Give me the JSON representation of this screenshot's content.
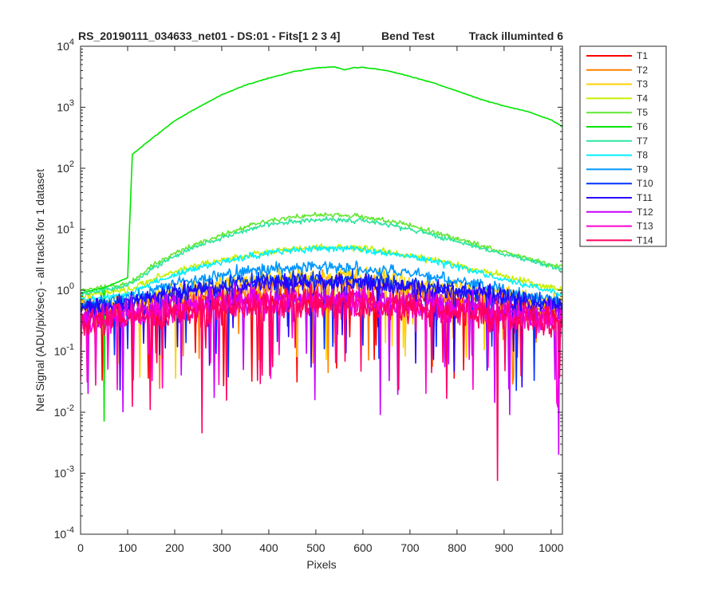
{
  "chart_data": {
    "type": "line",
    "title_parts": {
      "run": "RS_20190111_034633_net01 - DS:01 - Fits[1  2  3  4]",
      "test": "Bend Test",
      "track": "Track illuminted 6"
    },
    "xlabel": "Pixels",
    "ylabel": "Net Signal (ADU/pix/sec) - all tracks for 1 dataset",
    "xlim": [
      0,
      1024
    ],
    "ylim": [
      0.0001,
      10000
    ],
    "yscale": "log",
    "grid": false,
    "legend_position": "outside-right",
    "x_ticks": [
      "0",
      "100",
      "200",
      "300",
      "400",
      "500",
      "600",
      "700",
      "800",
      "900",
      "1000"
    ],
    "y_ticks": [
      {
        "base": "10",
        "exp": "-4"
      },
      {
        "base": "10",
        "exp": "-3"
      },
      {
        "base": "10",
        "exp": "-2"
      },
      {
        "base": "10",
        "exp": "-1"
      },
      {
        "base": "10",
        "exp": "0"
      },
      {
        "base": "10",
        "exp": "1"
      },
      {
        "base": "10",
        "exp": "2"
      },
      {
        "base": "10",
        "exp": "3"
      },
      {
        "base": "10",
        "exp": "4"
      }
    ],
    "x": [
      0,
      50,
      100,
      110,
      150,
      200,
      250,
      300,
      350,
      400,
      450,
      500,
      540,
      560,
      580,
      600,
      650,
      700,
      750,
      800,
      850,
      900,
      950,
      1000,
      1024
    ],
    "series": [
      {
        "name": "T1",
        "color": "#ff0000",
        "noise": 2.0,
        "values": [
          0.4,
          0.4,
          0.45,
          0.45,
          0.5,
          0.55,
          0.6,
          0.65,
          0.7,
          0.72,
          0.75,
          0.75,
          0.75,
          0.75,
          0.74,
          0.72,
          0.7,
          0.68,
          0.65,
          0.6,
          0.55,
          0.5,
          0.45,
          0.42,
          0.4
        ]
      },
      {
        "name": "T2",
        "color": "#ff8000",
        "noise": 1.8,
        "values": [
          0.5,
          0.5,
          0.55,
          0.55,
          0.65,
          0.75,
          0.85,
          0.95,
          1.05,
          1.15,
          1.2,
          1.25,
          1.25,
          1.25,
          1.22,
          1.2,
          1.1,
          1.0,
          0.9,
          0.8,
          0.7,
          0.62,
          0.55,
          0.5,
          0.48
        ]
      },
      {
        "name": "T3",
        "color": "#ffd200",
        "noise": 1.6,
        "values": [
          0.6,
          0.6,
          0.65,
          0.65,
          0.8,
          0.95,
          1.1,
          1.25,
          1.4,
          1.55,
          1.65,
          1.7,
          1.7,
          1.7,
          1.68,
          1.65,
          1.5,
          1.35,
          1.2,
          1.05,
          0.95,
          0.85,
          0.75,
          0.68,
          0.65
        ]
      },
      {
        "name": "T4",
        "color": "#c8f000",
        "noise": 1.2,
        "values": [
          0.8,
          0.9,
          1.0,
          1.05,
          1.5,
          2.0,
          2.6,
          3.1,
          3.7,
          4.2,
          4.7,
          5.0,
          5.0,
          5.0,
          4.9,
          4.8,
          4.3,
          3.7,
          3.1,
          2.6,
          2.1,
          1.7,
          1.35,
          1.1,
          1.0
        ]
      },
      {
        "name": "T5",
        "color": "#64e632",
        "noise": 1.15,
        "values": [
          1.0,
          1.1,
          1.3,
          1.4,
          2.5,
          4.0,
          6.0,
          8.0,
          11.0,
          14.0,
          16.0,
          17.0,
          17.0,
          16.8,
          16.5,
          16.0,
          14.0,
          11.5,
          9.0,
          7.0,
          5.5,
          4.2,
          3.3,
          2.6,
          2.4
        ]
      },
      {
        "name": "T6",
        "color": "#00e600",
        "noise": 1.02,
        "values": [
          0.9,
          1.1,
          1.6,
          170,
          300,
          600,
          1000,
          1600,
          2300,
          3000,
          3800,
          4400,
          4600,
          4100,
          4450,
          4500,
          4000,
          3200,
          2500,
          1850,
          1350,
          1050,
          850,
          620,
          480
        ]
      },
      {
        "name": "T7",
        "color": "#2de6a0",
        "noise": 1.15,
        "values": [
          0.85,
          1.0,
          1.2,
          1.3,
          2.2,
          3.6,
          5.3,
          7.2,
          9.5,
          12.0,
          13.5,
          14.2,
          14.3,
          14.2,
          14.0,
          13.6,
          12.0,
          10.0,
          8.0,
          6.3,
          5.0,
          3.9,
          3.1,
          2.5,
          2.2
        ]
      },
      {
        "name": "T8",
        "color": "#00f0ff",
        "noise": 1.2,
        "values": [
          0.7,
          0.75,
          0.85,
          0.9,
          1.3,
          1.8,
          2.3,
          2.9,
          3.5,
          4.1,
          4.6,
          4.8,
          4.8,
          4.8,
          4.75,
          4.6,
          4.2,
          3.6,
          3.0,
          2.4,
          1.9,
          1.5,
          1.2,
          0.95,
          0.85
        ]
      },
      {
        "name": "T9",
        "color": "#0096ff",
        "noise": 1.4,
        "values": [
          0.6,
          0.65,
          0.75,
          0.78,
          1.0,
          1.3,
          1.5,
          1.75,
          2.0,
          2.2,
          2.35,
          2.4,
          2.4,
          2.4,
          2.35,
          2.3,
          2.1,
          1.9,
          1.65,
          1.4,
          1.2,
          1.0,
          0.85,
          0.72,
          0.68
        ]
      },
      {
        "name": "T10",
        "color": "#0032ff",
        "noise": 1.6,
        "values": [
          0.55,
          0.6,
          0.65,
          0.68,
          0.82,
          0.98,
          1.1,
          1.22,
          1.35,
          1.45,
          1.5,
          1.55,
          1.55,
          1.55,
          1.52,
          1.5,
          1.4,
          1.28,
          1.15,
          1.02,
          0.9,
          0.8,
          0.7,
          0.62,
          0.6
        ]
      },
      {
        "name": "T11",
        "color": "#2800ff",
        "noise": 1.7,
        "values": [
          0.5,
          0.55,
          0.6,
          0.62,
          0.75,
          0.88,
          1.0,
          1.1,
          1.2,
          1.28,
          1.32,
          1.35,
          1.35,
          1.35,
          1.33,
          1.3,
          1.22,
          1.12,
          1.02,
          0.92,
          0.82,
          0.72,
          0.64,
          0.58,
          0.55
        ]
      },
      {
        "name": "T12",
        "color": "#c800ff",
        "noise": 2.2,
        "values": [
          0.35,
          0.38,
          0.42,
          0.43,
          0.5,
          0.55,
          0.6,
          0.65,
          0.7,
          0.72,
          0.74,
          0.75,
          0.75,
          0.75,
          0.74,
          0.72,
          0.68,
          0.64,
          0.6,
          0.55,
          0.5,
          0.46,
          0.42,
          0.38,
          0.36
        ]
      },
      {
        "name": "T13",
        "color": "#ff00d2",
        "noise": 2.2,
        "values": [
          0.3,
          0.32,
          0.35,
          0.36,
          0.42,
          0.47,
          0.52,
          0.56,
          0.6,
          0.62,
          0.64,
          0.65,
          0.65,
          0.65,
          0.64,
          0.62,
          0.58,
          0.55,
          0.52,
          0.48,
          0.44,
          0.4,
          0.36,
          0.33,
          0.31
        ]
      },
      {
        "name": "T14",
        "color": "#ff0064",
        "noise": 2.4,
        "values": [
          0.28,
          0.3,
          0.33,
          0.34,
          0.38,
          0.42,
          0.46,
          0.5,
          0.53,
          0.55,
          0.56,
          0.57,
          0.57,
          0.57,
          0.56,
          0.55,
          0.52,
          0.49,
          0.46,
          0.43,
          0.4,
          0.36,
          0.33,
          0.3,
          0.28
        ]
      }
    ],
    "annotations": [
      {
        "series": "T6",
        "x": 50,
        "y": 0.007
      },
      {
        "series": "T14",
        "x": 258,
        "y": 0.0045
      },
      {
        "series": "T14",
        "x": 886,
        "y": 0.00075
      },
      {
        "series": "T12",
        "x": 16,
        "y": 0.02
      },
      {
        "series": "T12",
        "x": 90,
        "y": 0.01
      },
      {
        "series": "T12",
        "x": 637,
        "y": 0.009
      },
      {
        "series": "T12",
        "x": 912,
        "y": 0.009
      },
      {
        "series": "T12",
        "x": 1016,
        "y": 0.002
      }
    ]
  }
}
